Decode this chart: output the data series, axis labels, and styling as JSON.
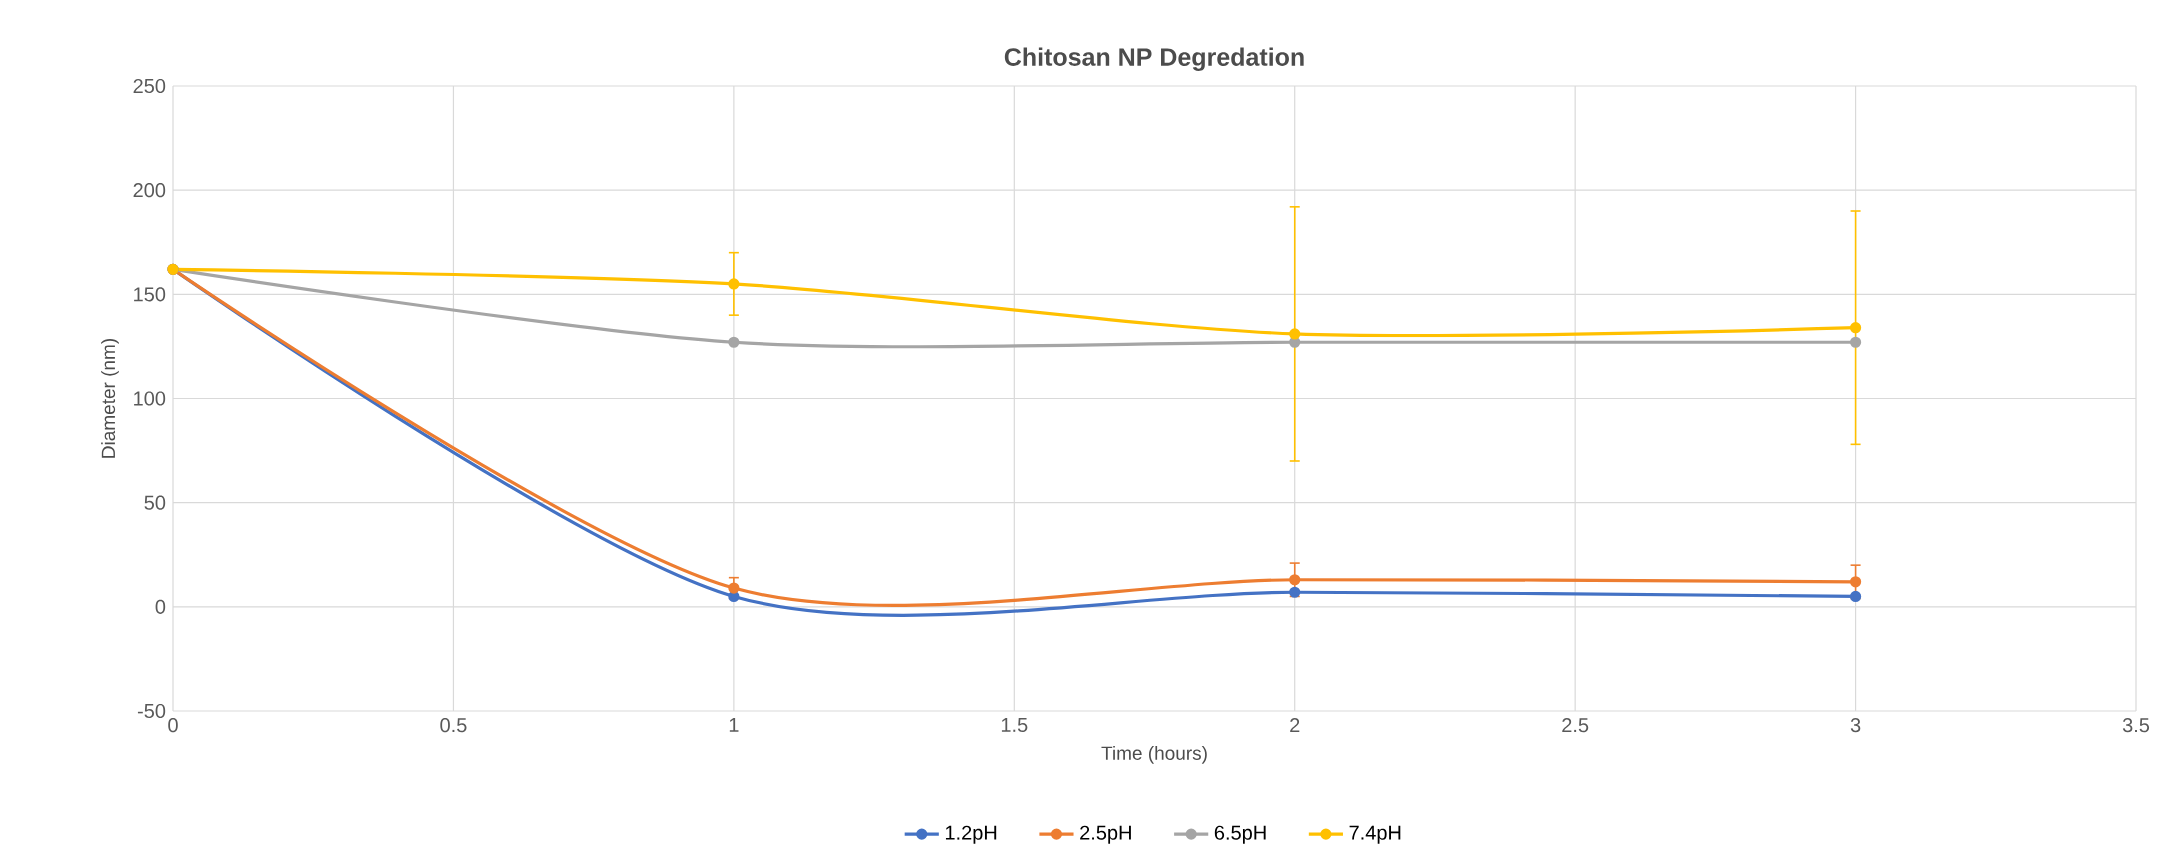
{
  "chart_data": {
    "type": "line",
    "title": "Chitosan NP Degredation",
    "xlabel": "Time (hours)",
    "ylabel": "Diameter (nm)",
    "x": [
      0,
      1,
      2,
      3
    ],
    "series": [
      {
        "name": "1.2pH",
        "color": "#4472c4",
        "values": [
          162,
          5,
          7,
          5
        ]
      },
      {
        "name": "2.5pH",
        "color": "#ed7d31",
        "values": [
          162,
          9,
          13,
          12
        ],
        "errors": [
          null,
          5,
          8,
          8
        ]
      },
      {
        "name": "6.5pH",
        "color": "#a5a5a5",
        "values": [
          162,
          127,
          127,
          127
        ]
      },
      {
        "name": "7.4pH",
        "color": "#ffc000",
        "values": [
          162,
          155,
          131,
          134
        ],
        "errors": [
          null,
          15,
          61,
          56
        ]
      }
    ],
    "xlim": [
      0,
      3.5
    ],
    "xticks": [
      0,
      0.5,
      1,
      1.5,
      2,
      2.5,
      3,
      3.5
    ],
    "ylim": [
      -50,
      250
    ],
    "yticks": [
      -50,
      0,
      50,
      100,
      150,
      200,
      250
    ],
    "grid": true,
    "legend": "bottom",
    "marker": "circle",
    "line_style": "solid"
  }
}
